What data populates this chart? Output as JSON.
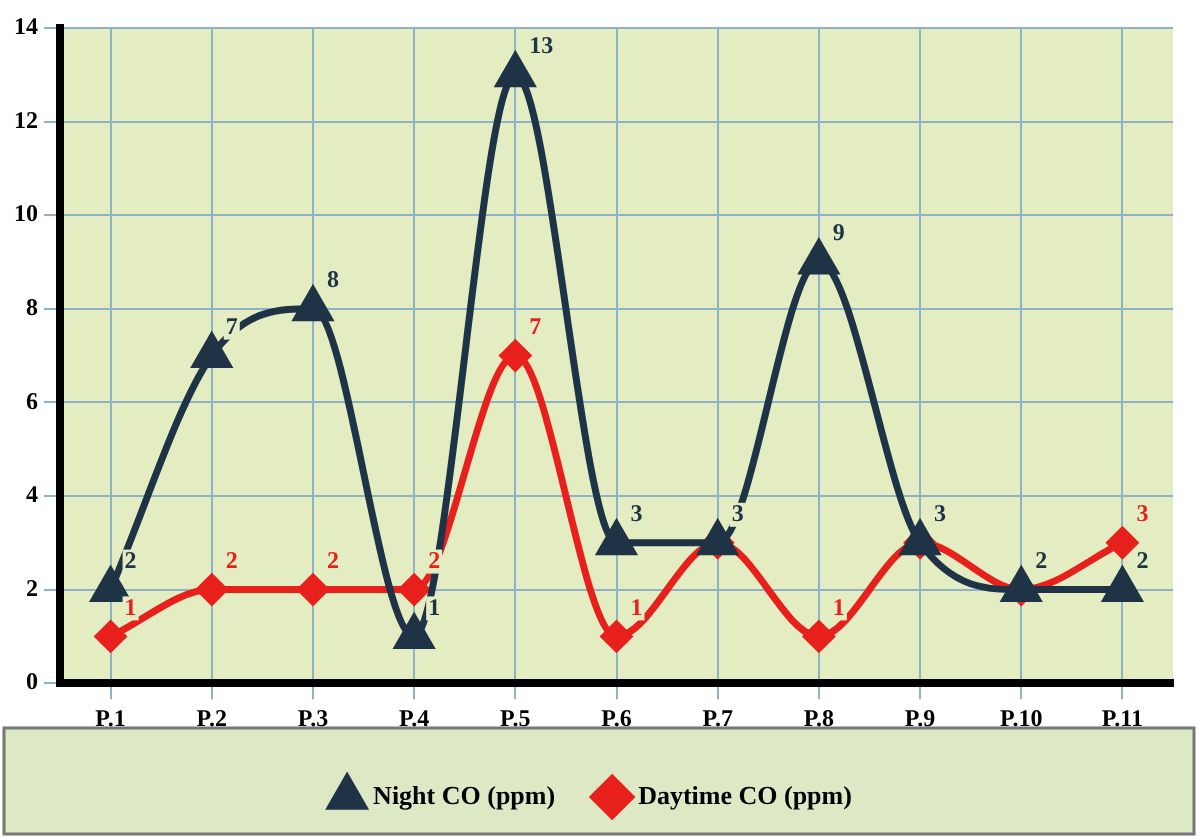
{
  "chart_data": {
    "type": "line",
    "categories": [
      "P.1",
      "P.2",
      "P.3",
      "P.4",
      "P.5",
      "P.6",
      "P.7",
      "P.8",
      "P.9",
      "P.10",
      "P.11"
    ],
    "series": [
      {
        "name": "Daytime CO (ppm)",
        "color": "#e8201c",
        "marker": "diamond",
        "values": [
          1,
          2,
          2,
          2,
          7,
          1,
          3,
          1,
          3,
          2,
          3
        ],
        "value_labels": [
          "1",
          "2",
          "2",
          "2",
          "7",
          "1",
          null,
          "1",
          null,
          null,
          "3"
        ]
      },
      {
        "name": "Night CO (ppm)",
        "color": "#1f3347",
        "marker": "triangle",
        "values": [
          2,
          7,
          8,
          1,
          13,
          3,
          3,
          9,
          3,
          2,
          2
        ],
        "value_labels": [
          "2",
          "7",
          "8",
          "1",
          "13",
          "3",
          "3",
          "9",
          "3",
          "2",
          "2"
        ]
      }
    ],
    "ylim": [
      0,
      14
    ],
    "yticks": [
      0,
      2,
      4,
      6,
      8,
      10,
      12,
      14
    ],
    "grid": true,
    "legend": "bottom",
    "line_style": "solid"
  }
}
